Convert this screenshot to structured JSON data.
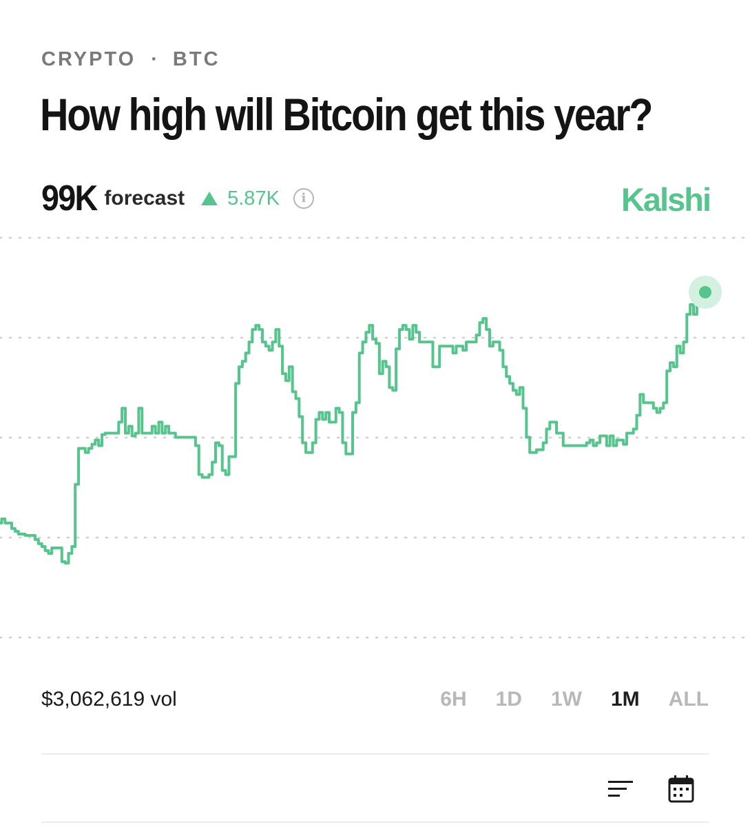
{
  "header": {
    "category": "CRYPTO",
    "separator": "·",
    "ticker": "BTC",
    "title": "How high will Bitcoin get this year?"
  },
  "forecast": {
    "value": "99K",
    "label": "forecast",
    "change": "5.87K",
    "change_direction": "up"
  },
  "brand": "Kalshi",
  "colors": {
    "accent": "#55c48d",
    "accent_glow": "#d3f0e1",
    "gridline": "#cfcfcf",
    "muted_text": "#b8b8b8"
  },
  "chart_data": {
    "type": "line",
    "grid": true,
    "series": [
      {
        "values": [
          82.3,
          82.6,
          82.3,
          82.3,
          81.9,
          81.7,
          81.5,
          81.5,
          81.4,
          81.4,
          81.4,
          81.1,
          80.8,
          80.6,
          80.3,
          80.1,
          80.5,
          80.5,
          80.5,
          79.5,
          79.4,
          80.1,
          80.6,
          85.1,
          87.7,
          87.7,
          87.4,
          87.7,
          88.0,
          88.3,
          87.9,
          88.7,
          88.8,
          88.8,
          88.8,
          88.8,
          89.6,
          90.6,
          88.8,
          89.3,
          88.6,
          88.8,
          90.6,
          88.8,
          88.8,
          88.8,
          89.3,
          88.8,
          89.6,
          88.8,
          89.3,
          88.8,
          88.8,
          88.5,
          88.5,
          88.5,
          88.5,
          88.5,
          88.5,
          87.9,
          85.8,
          85.6,
          85.6,
          85.8,
          86.7,
          88.1,
          87.9,
          86.1,
          85.8,
          87.1,
          87.1,
          92.4,
          93.6,
          94.0,
          94.6,
          95.4,
          96.3,
          96.6,
          96.3,
          95.4,
          95.1,
          94.8,
          95.4,
          96.3,
          95.1,
          93.1,
          92.6,
          93.6,
          91.8,
          91.3,
          90.0,
          88.1,
          87.4,
          87.4,
          88.1,
          89.8,
          90.3,
          89.8,
          90.3,
          89.6,
          89.6,
          90.6,
          90.3,
          88.1,
          87.3,
          87.3,
          90.3,
          91.0,
          94.6,
          95.4,
          96.1,
          96.6,
          95.6,
          95.3,
          93.1,
          94.0,
          93.6,
          92.1,
          91.9,
          94.9,
          96.3,
          96.6,
          96.3,
          95.6,
          96.6,
          96.1,
          95.4,
          95.4,
          95.4,
          95.4,
          93.6,
          93.6,
          95.1,
          95.1,
          95.1,
          95.1,
          94.6,
          95.1,
          95.1,
          94.8,
          95.4,
          95.4,
          95.4,
          95.9,
          96.8,
          97.1,
          96.3,
          95.1,
          95.4,
          95.4,
          94.8,
          93.6,
          92.9,
          92.4,
          91.9,
          91.6,
          92.1,
          90.6,
          88.5,
          87.4,
          87.4,
          87.6,
          87.6,
          88.1,
          89.1,
          89.6,
          89.6,
          88.8,
          88.8,
          87.9,
          87.9,
          87.9,
          87.9,
          87.9,
          87.9,
          87.9,
          88.1,
          88.3,
          87.9,
          88.1,
          88.6,
          88.6,
          87.9,
          88.6,
          87.9,
          88.3,
          88.3,
          88.0,
          88.8,
          88.8,
          89.1,
          90.1,
          91.6,
          91.0,
          91.0,
          91.0,
          90.6,
          90.3,
          90.6,
          91.0,
          93.3,
          93.9,
          93.6,
          95.1,
          94.6,
          95.4,
          97.4,
          98.1,
          97.4,
          98.4,
          99.2,
          99.0
        ]
      }
    ]
  },
  "footer": {
    "volume": "$3,062,619 vol",
    "ranges": [
      {
        "label": "6H",
        "active": false
      },
      {
        "label": "1D",
        "active": false
      },
      {
        "label": "1W",
        "active": false
      },
      {
        "label": "1M",
        "active": true
      },
      {
        "label": "ALL",
        "active": false
      }
    ]
  },
  "toolbar": {
    "icons": [
      "sort-icon",
      "calendar-icon"
    ]
  }
}
